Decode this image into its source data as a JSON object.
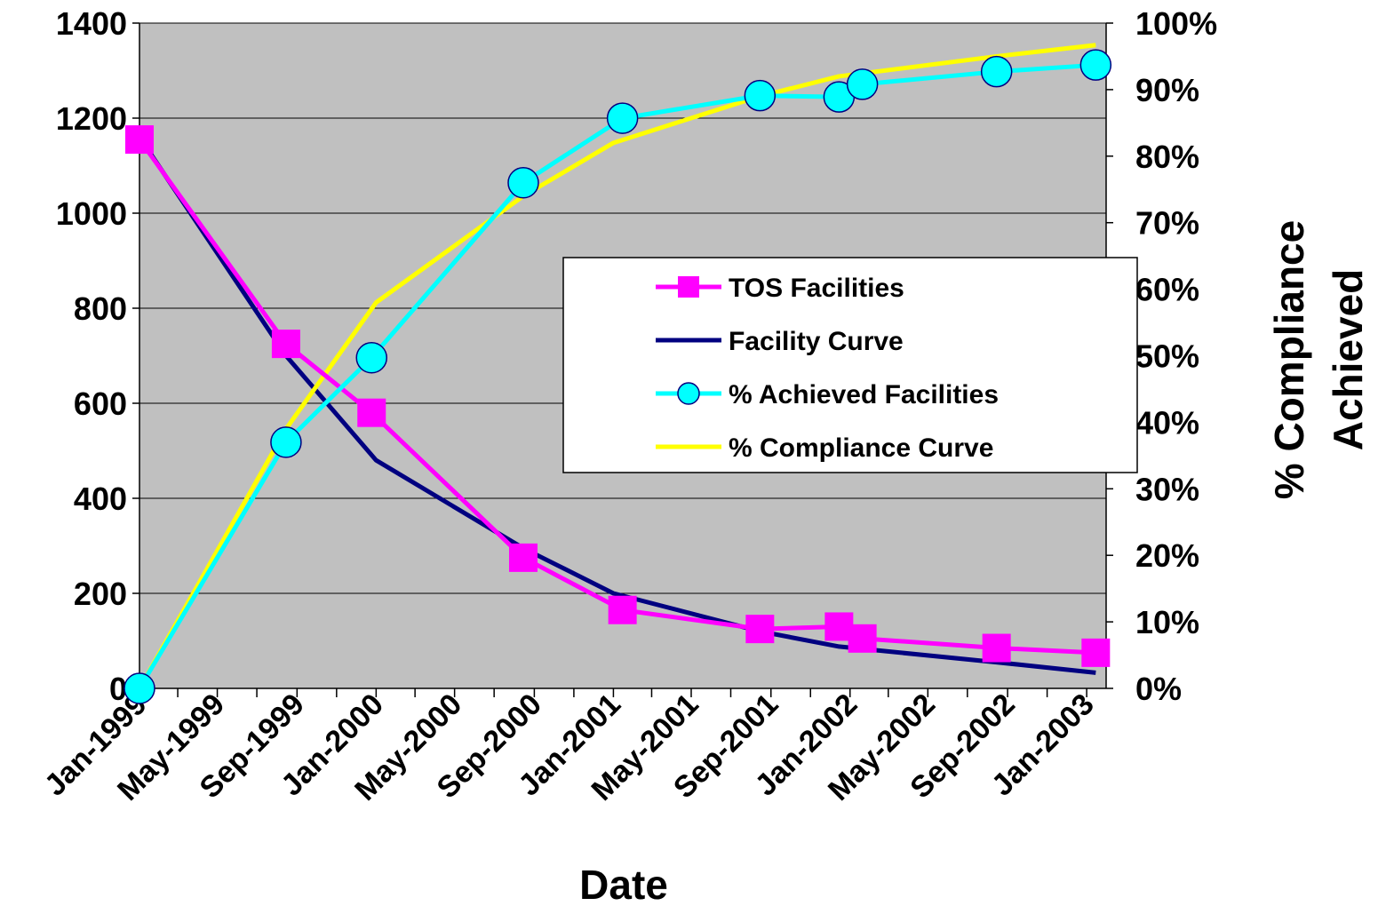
{
  "chart_data": {
    "type": "line",
    "xlabel": "Date",
    "ylabel": "",
    "y2label": "% Compliance Achieved",
    "y2label_lines": [
      "% Compliance",
      "Achieved"
    ],
    "x_tick_labels": [
      "Jan-1999",
      "May-1999",
      "Sep-1999",
      "Jan-2000",
      "May-2000",
      "Sep-2000",
      "Jan-2001",
      "May-2001",
      "Sep-2001",
      "Jan-2002",
      "May-2002",
      "Sep-2002",
      "Jan-2003"
    ],
    "x_range": [
      "1999-01-01",
      "2003-01-31"
    ],
    "ylim": [
      0,
      1400
    ],
    "y_ticks": [
      0,
      200,
      400,
      600,
      800,
      1000,
      1200,
      1400
    ],
    "y2lim": [
      0,
      1
    ],
    "y2_ticks": [
      "0%",
      "10%",
      "20%",
      "30%",
      "40%",
      "50%",
      "60%",
      "70%",
      "80%",
      "90%",
      "100%"
    ],
    "grid": "horizontal",
    "plot_background": "#c0c0c0",
    "legend_position": "center-right",
    "series": [
      {
        "name": "TOS Facilities",
        "axis": "left",
        "color": "#ff00ff",
        "marker": "square",
        "points": [
          {
            "x": "1999-01-01",
            "y": 1155
          },
          {
            "x": "1999-08-15",
            "y": 725
          },
          {
            "x": "1999-12-25",
            "y": 580
          },
          {
            "x": "2000-08-15",
            "y": 275
          },
          {
            "x": "2001-01-15",
            "y": 165
          },
          {
            "x": "2001-08-15",
            "y": 125
          },
          {
            "x": "2001-12-15",
            "y": 130
          },
          {
            "x": "2002-01-20",
            "y": 105
          },
          {
            "x": "2002-08-15",
            "y": 85
          },
          {
            "x": "2003-01-15",
            "y": 75
          }
        ]
      },
      {
        "name": "Facility Curve",
        "axis": "left",
        "color": "#000080",
        "marker": "none",
        "points": [
          {
            "x": "1999-01-01",
            "y": 1160
          },
          {
            "x": "1999-08-15",
            "y": 700
          },
          {
            "x": "2000-01-01",
            "y": 480
          },
          {
            "x": "2000-08-15",
            "y": 295
          },
          {
            "x": "2001-01-01",
            "y": 200
          },
          {
            "x": "2001-08-15",
            "y": 120
          },
          {
            "x": "2001-12-15",
            "y": 88
          },
          {
            "x": "2002-08-15",
            "y": 55
          },
          {
            "x": "2003-01-15",
            "y": 33
          }
        ]
      },
      {
        "name": "% Achieved Facilities",
        "axis": "right",
        "color": "#00ffff",
        "marker": "circle",
        "points": [
          {
            "x": "1999-01-01",
            "y": 0.0
          },
          {
            "x": "1999-08-15",
            "y": 0.37
          },
          {
            "x": "1999-12-25",
            "y": 0.497
          },
          {
            "x": "2000-08-15",
            "y": 0.76
          },
          {
            "x": "2001-01-15",
            "y": 0.857
          },
          {
            "x": "2001-08-15",
            "y": 0.891
          },
          {
            "x": "2001-12-15",
            "y": 0.889
          },
          {
            "x": "2002-01-20",
            "y": 0.908
          },
          {
            "x": "2002-08-15",
            "y": 0.927
          },
          {
            "x": "2003-01-15",
            "y": 0.937
          }
        ]
      },
      {
        "name": "% Compliance Curve",
        "axis": "right",
        "color": "#ffff00",
        "marker": "none",
        "points": [
          {
            "x": "1999-01-01",
            "y": 0.0
          },
          {
            "x": "1999-08-15",
            "y": 0.39
          },
          {
            "x": "2000-01-01",
            "y": 0.58
          },
          {
            "x": "2000-08-15",
            "y": 0.74
          },
          {
            "x": "2001-01-01",
            "y": 0.82
          },
          {
            "x": "2001-08-15",
            "y": 0.89
          },
          {
            "x": "2001-12-15",
            "y": 0.92
          },
          {
            "x": "2002-08-15",
            "y": 0.95
          },
          {
            "x": "2003-01-15",
            "y": 0.967
          }
        ]
      }
    ]
  }
}
